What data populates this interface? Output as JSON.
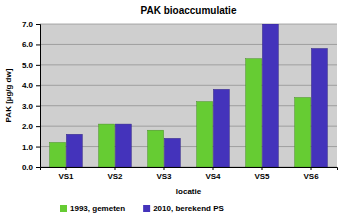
{
  "chart_data": {
    "type": "bar",
    "title": "PAK bioaccumulatie",
    "x_label": "locatie",
    "y_label": "PAK [µg/g dw]",
    "categories": [
      "VS1",
      "VS2",
      "VS3",
      "VS4",
      "VS5",
      "VS6"
    ],
    "series": [
      {
        "name": "1993, gemeten",
        "color": "#66cc33",
        "values": [
          1.2,
          2.1,
          1.8,
          3.2,
          5.3,
          3.4
        ]
      },
      {
        "name": "2010, berekend PS",
        "color": "#4433bb",
        "values": [
          1.6,
          2.1,
          1.4,
          3.8,
          7.0,
          5.8
        ]
      }
    ],
    "ylim": [
      0,
      7
    ],
    "yticks": [
      {
        "value": 0,
        "label": "0.0"
      },
      {
        "value": 1,
        "label": "1.0"
      },
      {
        "value": 2,
        "label": "2.0"
      },
      {
        "value": 3,
        "label": "3.0"
      },
      {
        "value": 4,
        "label": "4.0"
      },
      {
        "value": 5,
        "label": "5.0"
      },
      {
        "value": 6,
        "label": "6.0"
      },
      {
        "value": 7,
        "label": "7.0"
      }
    ],
    "grid": true,
    "legend": "bottom"
  }
}
